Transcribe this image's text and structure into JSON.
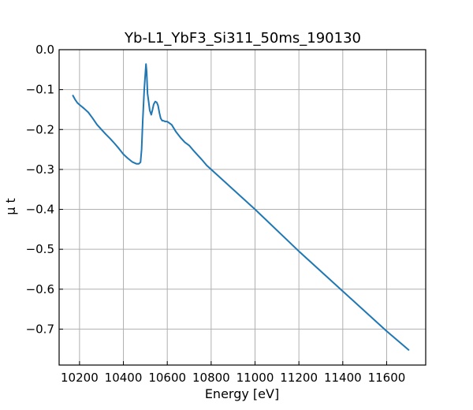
{
  "chart_data": {
    "type": "line",
    "title": "Yb-L1_YbF3_Si311_50ms_190130",
    "xlabel": "Energy [eV]",
    "ylabel": "μ t",
    "xlim": [
      10107,
      11778
    ],
    "ylim": [
      -0.79,
      0.0
    ],
    "grid": true,
    "x_ticks": [
      10200,
      10400,
      10600,
      10800,
      11000,
      11200,
      11400,
      11600
    ],
    "x_tick_labels": [
      "10200",
      "10400",
      "10600",
      "10800",
      "11000",
      "11200",
      "11400",
      "11600"
    ],
    "y_ticks": [
      0.0,
      -0.1,
      -0.2,
      -0.3,
      -0.4,
      -0.5,
      -0.6,
      -0.7
    ],
    "y_tick_labels": [
      "0.0",
      "−0.1",
      "−0.2",
      "−0.3",
      "−0.4",
      "−0.5",
      "−0.6",
      "−0.7"
    ],
    "series": [
      {
        "color": "#1f77b4",
        "x": [
          10170,
          10180,
          10190,
          10200,
          10220,
          10240,
          10260,
          10280,
          10300,
          10320,
          10340,
          10360,
          10380,
          10400,
          10420,
          10440,
          10460,
          10470,
          10478,
          10483,
          10488,
          10495,
          10500,
          10503,
          10506,
          10510,
          10515,
          10520,
          10527,
          10532,
          10538,
          10545,
          10552,
          10558,
          10564,
          10570,
          10577,
          10583,
          10590,
          10600,
          10620,
          10640,
          10660,
          10680,
          10700,
          10720,
          10740,
          10760,
          10780,
          10800,
          11000,
          11200,
          11400,
          11600,
          11700
        ],
        "y": [
          -0.115,
          -0.125,
          -0.133,
          -0.138,
          -0.147,
          -0.157,
          -0.172,
          -0.188,
          -0.2,
          -0.212,
          -0.223,
          -0.235,
          -0.248,
          -0.262,
          -0.272,
          -0.281,
          -0.286,
          -0.286,
          -0.282,
          -0.25,
          -0.18,
          -0.1,
          -0.06,
          -0.036,
          -0.055,
          -0.11,
          -0.13,
          -0.152,
          -0.163,
          -0.152,
          -0.137,
          -0.13,
          -0.132,
          -0.14,
          -0.158,
          -0.172,
          -0.178,
          -0.178,
          -0.18,
          -0.18,
          -0.188,
          -0.206,
          -0.22,
          -0.232,
          -0.24,
          -0.253,
          -0.265,
          -0.277,
          -0.29,
          -0.3,
          -0.4,
          -0.505,
          -0.605,
          -0.705,
          -0.752
        ]
      }
    ]
  }
}
